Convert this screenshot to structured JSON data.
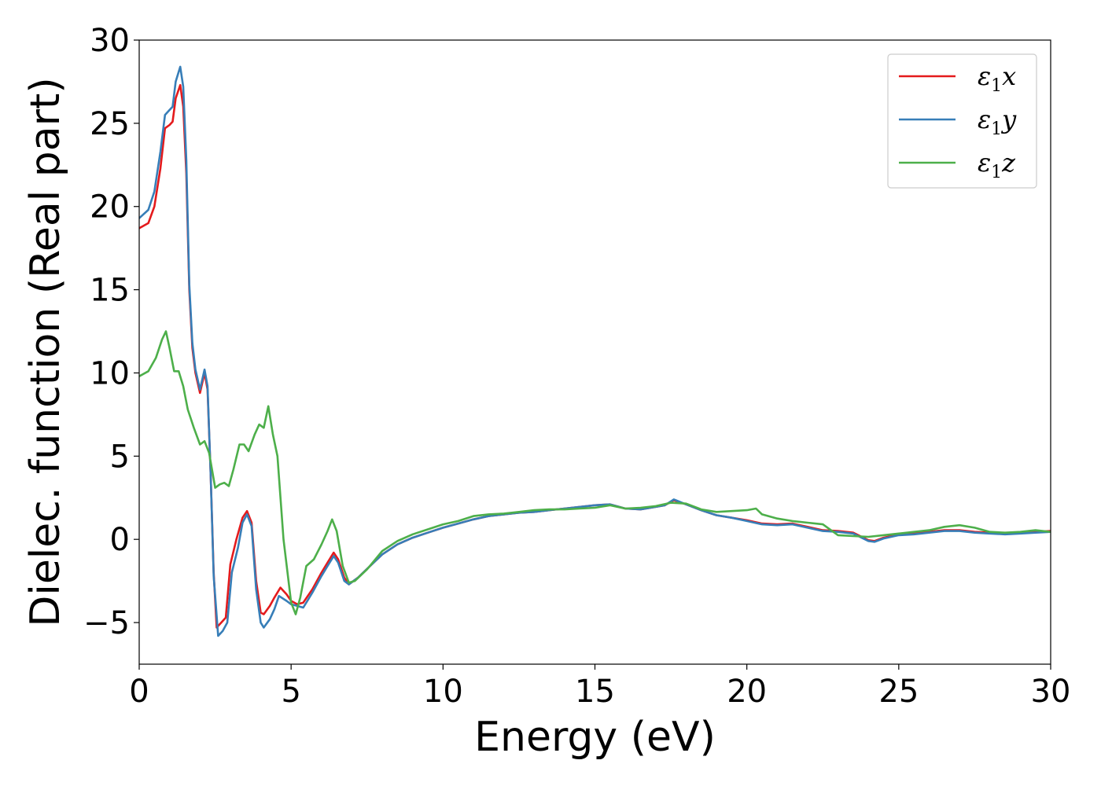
{
  "chart_data": {
    "type": "line",
    "title": "",
    "xlabel": "Energy (eV)",
    "ylabel": "Dielec. function (Real part)",
    "xlim": [
      0,
      30
    ],
    "ylim": [
      -7.5,
      30
    ],
    "xticks": [
      0,
      5,
      10,
      15,
      20,
      25,
      30
    ],
    "xtick_labels": [
      "0",
      "5",
      "10",
      "15",
      "20",
      "25",
      "30"
    ],
    "yticks": [
      -5,
      0,
      5,
      10,
      15,
      20,
      25,
      30
    ],
    "ytick_labels": [
      "−5",
      "0",
      "5",
      "10",
      "15",
      "20",
      "25",
      "30"
    ],
    "grid": false,
    "legend_position": "top-right",
    "series": [
      {
        "name": "ε₁x",
        "symbol": "ε",
        "sub": "1",
        "var": "x",
        "color": "#e41a1c",
        "points": [
          [
            0,
            18.7
          ],
          [
            0.3,
            19.0
          ],
          [
            0.5,
            20.0
          ],
          [
            0.7,
            22.3
          ],
          [
            0.85,
            24.7
          ],
          [
            1.0,
            24.9
          ],
          [
            1.1,
            25.1
          ],
          [
            1.2,
            26.5
          ],
          [
            1.35,
            27.3
          ],
          [
            1.45,
            26.0
          ],
          [
            1.55,
            22.0
          ],
          [
            1.65,
            15.0
          ],
          [
            1.75,
            11.5
          ],
          [
            1.85,
            10.0
          ],
          [
            2.0,
            8.8
          ],
          [
            2.15,
            10.0
          ],
          [
            2.25,
            9.0
          ],
          [
            2.35,
            4.0
          ],
          [
            2.45,
            -2.0
          ],
          [
            2.55,
            -5.3
          ],
          [
            2.7,
            -5.0
          ],
          [
            2.85,
            -4.7
          ],
          [
            3.0,
            -1.5
          ],
          [
            3.2,
            0.0
          ],
          [
            3.4,
            1.3
          ],
          [
            3.55,
            1.7
          ],
          [
            3.7,
            1.0
          ],
          [
            3.85,
            -2.5
          ],
          [
            4.0,
            -4.4
          ],
          [
            4.1,
            -4.5
          ],
          [
            4.3,
            -4.0
          ],
          [
            4.45,
            -3.5
          ],
          [
            4.65,
            -2.9
          ],
          [
            4.85,
            -3.3
          ],
          [
            5.0,
            -3.7
          ],
          [
            5.2,
            -3.9
          ],
          [
            5.4,
            -3.8
          ],
          [
            5.7,
            -3.0
          ],
          [
            6.0,
            -2.0
          ],
          [
            6.2,
            -1.4
          ],
          [
            6.4,
            -0.8
          ],
          [
            6.55,
            -1.2
          ],
          [
            6.75,
            -2.3
          ],
          [
            6.9,
            -2.7
          ],
          [
            7.2,
            -2.3
          ],
          [
            7.6,
            -1.6
          ],
          [
            8.0,
            -0.9
          ],
          [
            8.5,
            -0.3
          ],
          [
            9.0,
            0.1
          ],
          [
            9.5,
            0.4
          ],
          [
            10.0,
            0.7
          ],
          [
            10.5,
            0.95
          ],
          [
            11.0,
            1.2
          ],
          [
            11.5,
            1.4
          ],
          [
            12.0,
            1.5
          ],
          [
            12.5,
            1.6
          ],
          [
            13.0,
            1.65
          ],
          [
            13.5,
            1.75
          ],
          [
            14.0,
            1.85
          ],
          [
            14.5,
            1.95
          ],
          [
            15.0,
            2.05
          ],
          [
            15.5,
            2.1
          ],
          [
            16.0,
            1.85
          ],
          [
            16.5,
            1.8
          ],
          [
            17.0,
            1.95
          ],
          [
            17.3,
            2.05
          ],
          [
            17.6,
            2.35
          ],
          [
            18.0,
            2.1
          ],
          [
            18.5,
            1.75
          ],
          [
            19.0,
            1.45
          ],
          [
            19.5,
            1.3
          ],
          [
            20.0,
            1.15
          ],
          [
            20.5,
            0.95
          ],
          [
            21.0,
            0.9
          ],
          [
            21.5,
            0.95
          ],
          [
            22.0,
            0.75
          ],
          [
            22.5,
            0.55
          ],
          [
            23.0,
            0.5
          ],
          [
            23.5,
            0.4
          ],
          [
            24.0,
            -0.05
          ],
          [
            24.2,
            -0.1
          ],
          [
            24.5,
            0.1
          ],
          [
            25.0,
            0.3
          ],
          [
            25.5,
            0.35
          ],
          [
            26.0,
            0.45
          ],
          [
            26.5,
            0.55
          ],
          [
            27.0,
            0.55
          ],
          [
            27.5,
            0.45
          ],
          [
            28.0,
            0.4
          ],
          [
            28.5,
            0.35
          ],
          [
            29.0,
            0.4
          ],
          [
            29.5,
            0.45
          ],
          [
            30,
            0.5
          ]
        ]
      },
      {
        "name": "ε₁y",
        "symbol": "ε",
        "sub": "1",
        "var": "y",
        "color": "#377eb8",
        "points": [
          [
            0,
            19.3
          ],
          [
            0.3,
            19.8
          ],
          [
            0.5,
            20.9
          ],
          [
            0.7,
            23.3
          ],
          [
            0.85,
            25.5
          ],
          [
            1.0,
            25.8
          ],
          [
            1.1,
            26.0
          ],
          [
            1.2,
            27.5
          ],
          [
            1.35,
            28.4
          ],
          [
            1.45,
            27.2
          ],
          [
            1.55,
            22.8
          ],
          [
            1.65,
            15.3
          ],
          [
            1.75,
            11.8
          ],
          [
            1.85,
            10.2
          ],
          [
            2.0,
            9.0
          ],
          [
            2.15,
            10.2
          ],
          [
            2.25,
            9.2
          ],
          [
            2.35,
            4.0
          ],
          [
            2.45,
            -2.2
          ],
          [
            2.6,
            -5.8
          ],
          [
            2.75,
            -5.5
          ],
          [
            2.9,
            -5.0
          ],
          [
            3.05,
            -2.0
          ],
          [
            3.25,
            -0.5
          ],
          [
            3.4,
            1.0
          ],
          [
            3.55,
            1.5
          ],
          [
            3.7,
            0.8
          ],
          [
            3.85,
            -3.0
          ],
          [
            4.0,
            -5.0
          ],
          [
            4.1,
            -5.3
          ],
          [
            4.3,
            -4.8
          ],
          [
            4.45,
            -4.2
          ],
          [
            4.6,
            -3.4
          ],
          [
            4.85,
            -3.7
          ],
          [
            5.0,
            -3.9
          ],
          [
            5.2,
            -4.0
          ],
          [
            5.4,
            -4.1
          ],
          [
            5.7,
            -3.2
          ],
          [
            6.0,
            -2.2
          ],
          [
            6.2,
            -1.6
          ],
          [
            6.4,
            -1.0
          ],
          [
            6.55,
            -1.4
          ],
          [
            6.75,
            -2.5
          ],
          [
            6.9,
            -2.7
          ],
          [
            7.2,
            -2.3
          ],
          [
            7.6,
            -1.6
          ],
          [
            8.0,
            -0.9
          ],
          [
            8.5,
            -0.3
          ],
          [
            9.0,
            0.1
          ],
          [
            9.5,
            0.4
          ],
          [
            10.0,
            0.7
          ],
          [
            10.5,
            0.95
          ],
          [
            11.0,
            1.2
          ],
          [
            11.5,
            1.4
          ],
          [
            12.0,
            1.5
          ],
          [
            12.5,
            1.6
          ],
          [
            13.0,
            1.65
          ],
          [
            13.5,
            1.75
          ],
          [
            14.0,
            1.85
          ],
          [
            14.5,
            1.95
          ],
          [
            15.0,
            2.05
          ],
          [
            15.5,
            2.1
          ],
          [
            16.0,
            1.85
          ],
          [
            16.5,
            1.8
          ],
          [
            17.0,
            1.95
          ],
          [
            17.3,
            2.05
          ],
          [
            17.6,
            2.4
          ],
          [
            18.0,
            2.1
          ],
          [
            18.5,
            1.75
          ],
          [
            19.0,
            1.45
          ],
          [
            19.5,
            1.3
          ],
          [
            20.0,
            1.1
          ],
          [
            20.5,
            0.9
          ],
          [
            21.0,
            0.85
          ],
          [
            21.5,
            0.9
          ],
          [
            22.0,
            0.7
          ],
          [
            22.5,
            0.5
          ],
          [
            23.0,
            0.45
          ],
          [
            23.5,
            0.35
          ],
          [
            24.0,
            -0.1
          ],
          [
            24.2,
            -0.15
          ],
          [
            24.5,
            0.05
          ],
          [
            25.0,
            0.25
          ],
          [
            25.5,
            0.3
          ],
          [
            26.0,
            0.4
          ],
          [
            26.5,
            0.5
          ],
          [
            27.0,
            0.5
          ],
          [
            27.5,
            0.4
          ],
          [
            28.0,
            0.35
          ],
          [
            28.5,
            0.3
          ],
          [
            29.0,
            0.35
          ],
          [
            29.5,
            0.4
          ],
          [
            30,
            0.45
          ]
        ]
      },
      {
        "name": "ε₁z",
        "symbol": "ε",
        "sub": "1",
        "var": "z",
        "color": "#4daf4a",
        "points": [
          [
            0,
            9.8
          ],
          [
            0.3,
            10.1
          ],
          [
            0.55,
            10.9
          ],
          [
            0.75,
            12.0
          ],
          [
            0.88,
            12.5
          ],
          [
            1.0,
            11.5
          ],
          [
            1.15,
            10.1
          ],
          [
            1.3,
            10.1
          ],
          [
            1.45,
            9.2
          ],
          [
            1.6,
            7.8
          ],
          [
            1.8,
            6.7
          ],
          [
            2.0,
            5.7
          ],
          [
            2.15,
            5.9
          ],
          [
            2.3,
            5.2
          ],
          [
            2.5,
            3.1
          ],
          [
            2.65,
            3.3
          ],
          [
            2.8,
            3.4
          ],
          [
            2.95,
            3.2
          ],
          [
            3.1,
            4.2
          ],
          [
            3.3,
            5.7
          ],
          [
            3.45,
            5.7
          ],
          [
            3.6,
            5.3
          ],
          [
            3.8,
            6.3
          ],
          [
            3.95,
            6.9
          ],
          [
            4.1,
            6.7
          ],
          [
            4.25,
            8.0
          ],
          [
            4.4,
            6.3
          ],
          [
            4.55,
            5.0
          ],
          [
            4.75,
            0.0
          ],
          [
            5.0,
            -3.8
          ],
          [
            5.15,
            -4.5
          ],
          [
            5.3,
            -3.5
          ],
          [
            5.5,
            -1.6
          ],
          [
            5.75,
            -1.2
          ],
          [
            6.0,
            -0.3
          ],
          [
            6.2,
            0.5
          ],
          [
            6.35,
            1.2
          ],
          [
            6.5,
            0.5
          ],
          [
            6.7,
            -1.6
          ],
          [
            6.9,
            -2.6
          ],
          [
            7.1,
            -2.5
          ],
          [
            7.5,
            -1.8
          ],
          [
            8.0,
            -0.7
          ],
          [
            8.5,
            -0.1
          ],
          [
            9.0,
            0.3
          ],
          [
            9.5,
            0.6
          ],
          [
            10.0,
            0.9
          ],
          [
            10.5,
            1.1
          ],
          [
            11.0,
            1.4
          ],
          [
            11.5,
            1.5
          ],
          [
            12.0,
            1.55
          ],
          [
            12.5,
            1.65
          ],
          [
            13.0,
            1.75
          ],
          [
            13.5,
            1.8
          ],
          [
            14.0,
            1.8
          ],
          [
            14.5,
            1.85
          ],
          [
            15.0,
            1.9
          ],
          [
            15.5,
            2.05
          ],
          [
            16.0,
            1.85
          ],
          [
            16.5,
            1.9
          ],
          [
            17.0,
            2.0
          ],
          [
            17.5,
            2.2
          ],
          [
            18.0,
            2.15
          ],
          [
            18.5,
            1.8
          ],
          [
            19.0,
            1.65
          ],
          [
            19.5,
            1.7
          ],
          [
            20.0,
            1.75
          ],
          [
            20.3,
            1.85
          ],
          [
            20.5,
            1.5
          ],
          [
            21.0,
            1.25
          ],
          [
            21.5,
            1.1
          ],
          [
            22.0,
            1.0
          ],
          [
            22.5,
            0.9
          ],
          [
            23.0,
            0.25
          ],
          [
            23.5,
            0.2
          ],
          [
            24.0,
            0.15
          ],
          [
            24.5,
            0.25
          ],
          [
            25.0,
            0.35
          ],
          [
            25.5,
            0.45
          ],
          [
            26.0,
            0.55
          ],
          [
            26.5,
            0.75
          ],
          [
            27.0,
            0.85
          ],
          [
            27.5,
            0.7
          ],
          [
            28.0,
            0.45
          ],
          [
            28.5,
            0.4
          ],
          [
            29.0,
            0.45
          ],
          [
            29.5,
            0.55
          ],
          [
            30,
            0.45
          ]
        ]
      }
    ]
  }
}
